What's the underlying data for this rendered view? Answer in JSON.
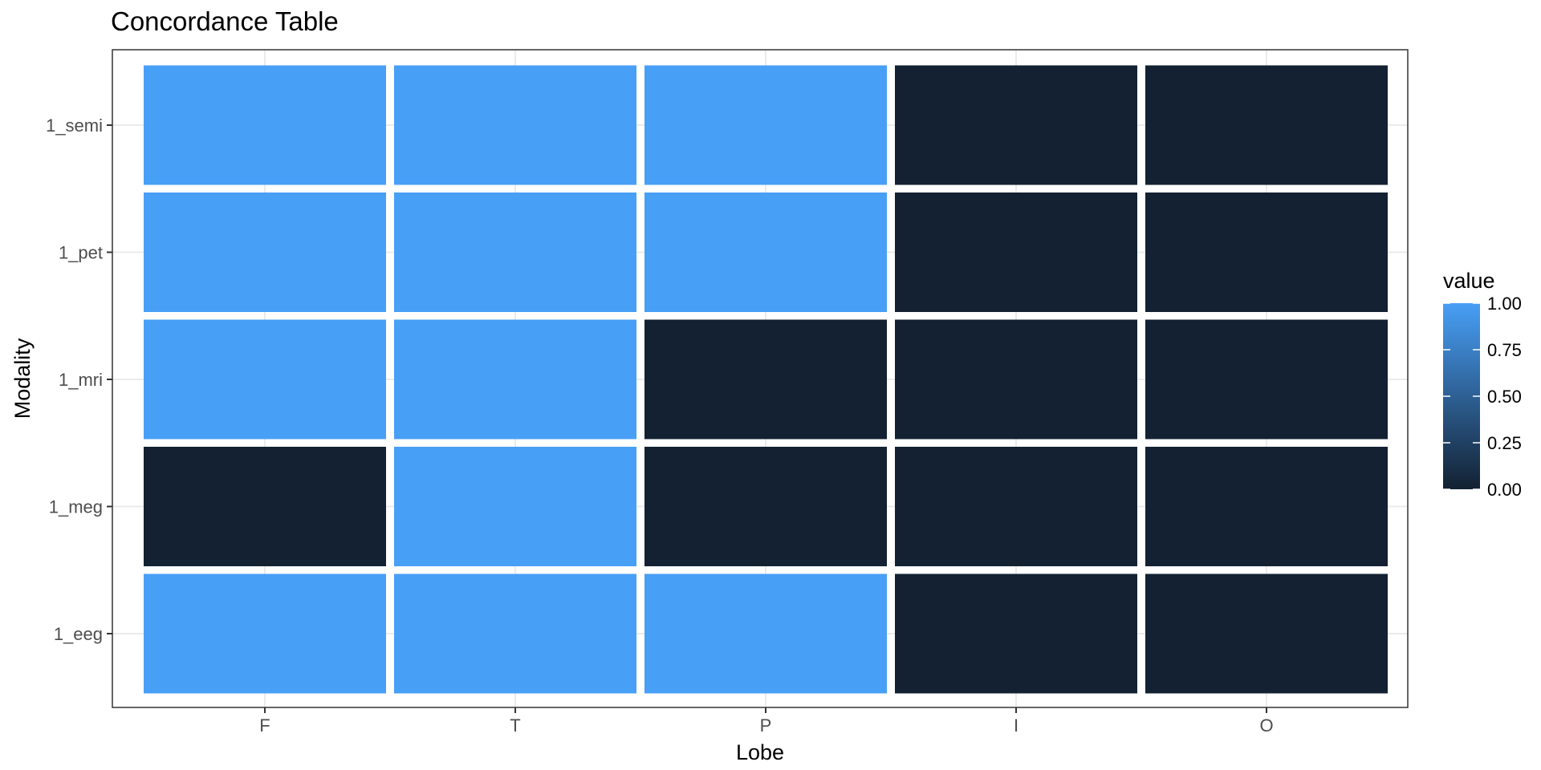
{
  "chart_data": {
    "type": "heatmap",
    "title": "Concordance Table",
    "xlabel": "Lobe",
    "ylabel": "Modality",
    "x_categories": [
      "F",
      "T",
      "P",
      "I",
      "O"
    ],
    "y_categories": [
      "1_eeg",
      "1_meg",
      "1_mri",
      "1_pet",
      "1_semi"
    ],
    "values": [
      [
        1,
        1,
        1,
        0,
        0
      ],
      [
        0,
        1,
        0,
        0,
        0
      ],
      [
        1,
        1,
        0,
        0,
        0
      ],
      [
        1,
        1,
        1,
        0,
        0
      ],
      [
        1,
        1,
        1,
        0,
        0
      ]
    ],
    "legend": {
      "title": "value",
      "ticks": [
        "0.00",
        "0.25",
        "0.50",
        "0.75",
        "1.00"
      ],
      "range": [
        0,
        1
      ],
      "placement": "right"
    },
    "colors": {
      "low": "#132132",
      "high": "#489ff6",
      "grid": "#ebebeb",
      "tile_border": "#ffffff",
      "panel_border": "#333333"
    },
    "grid": true
  }
}
